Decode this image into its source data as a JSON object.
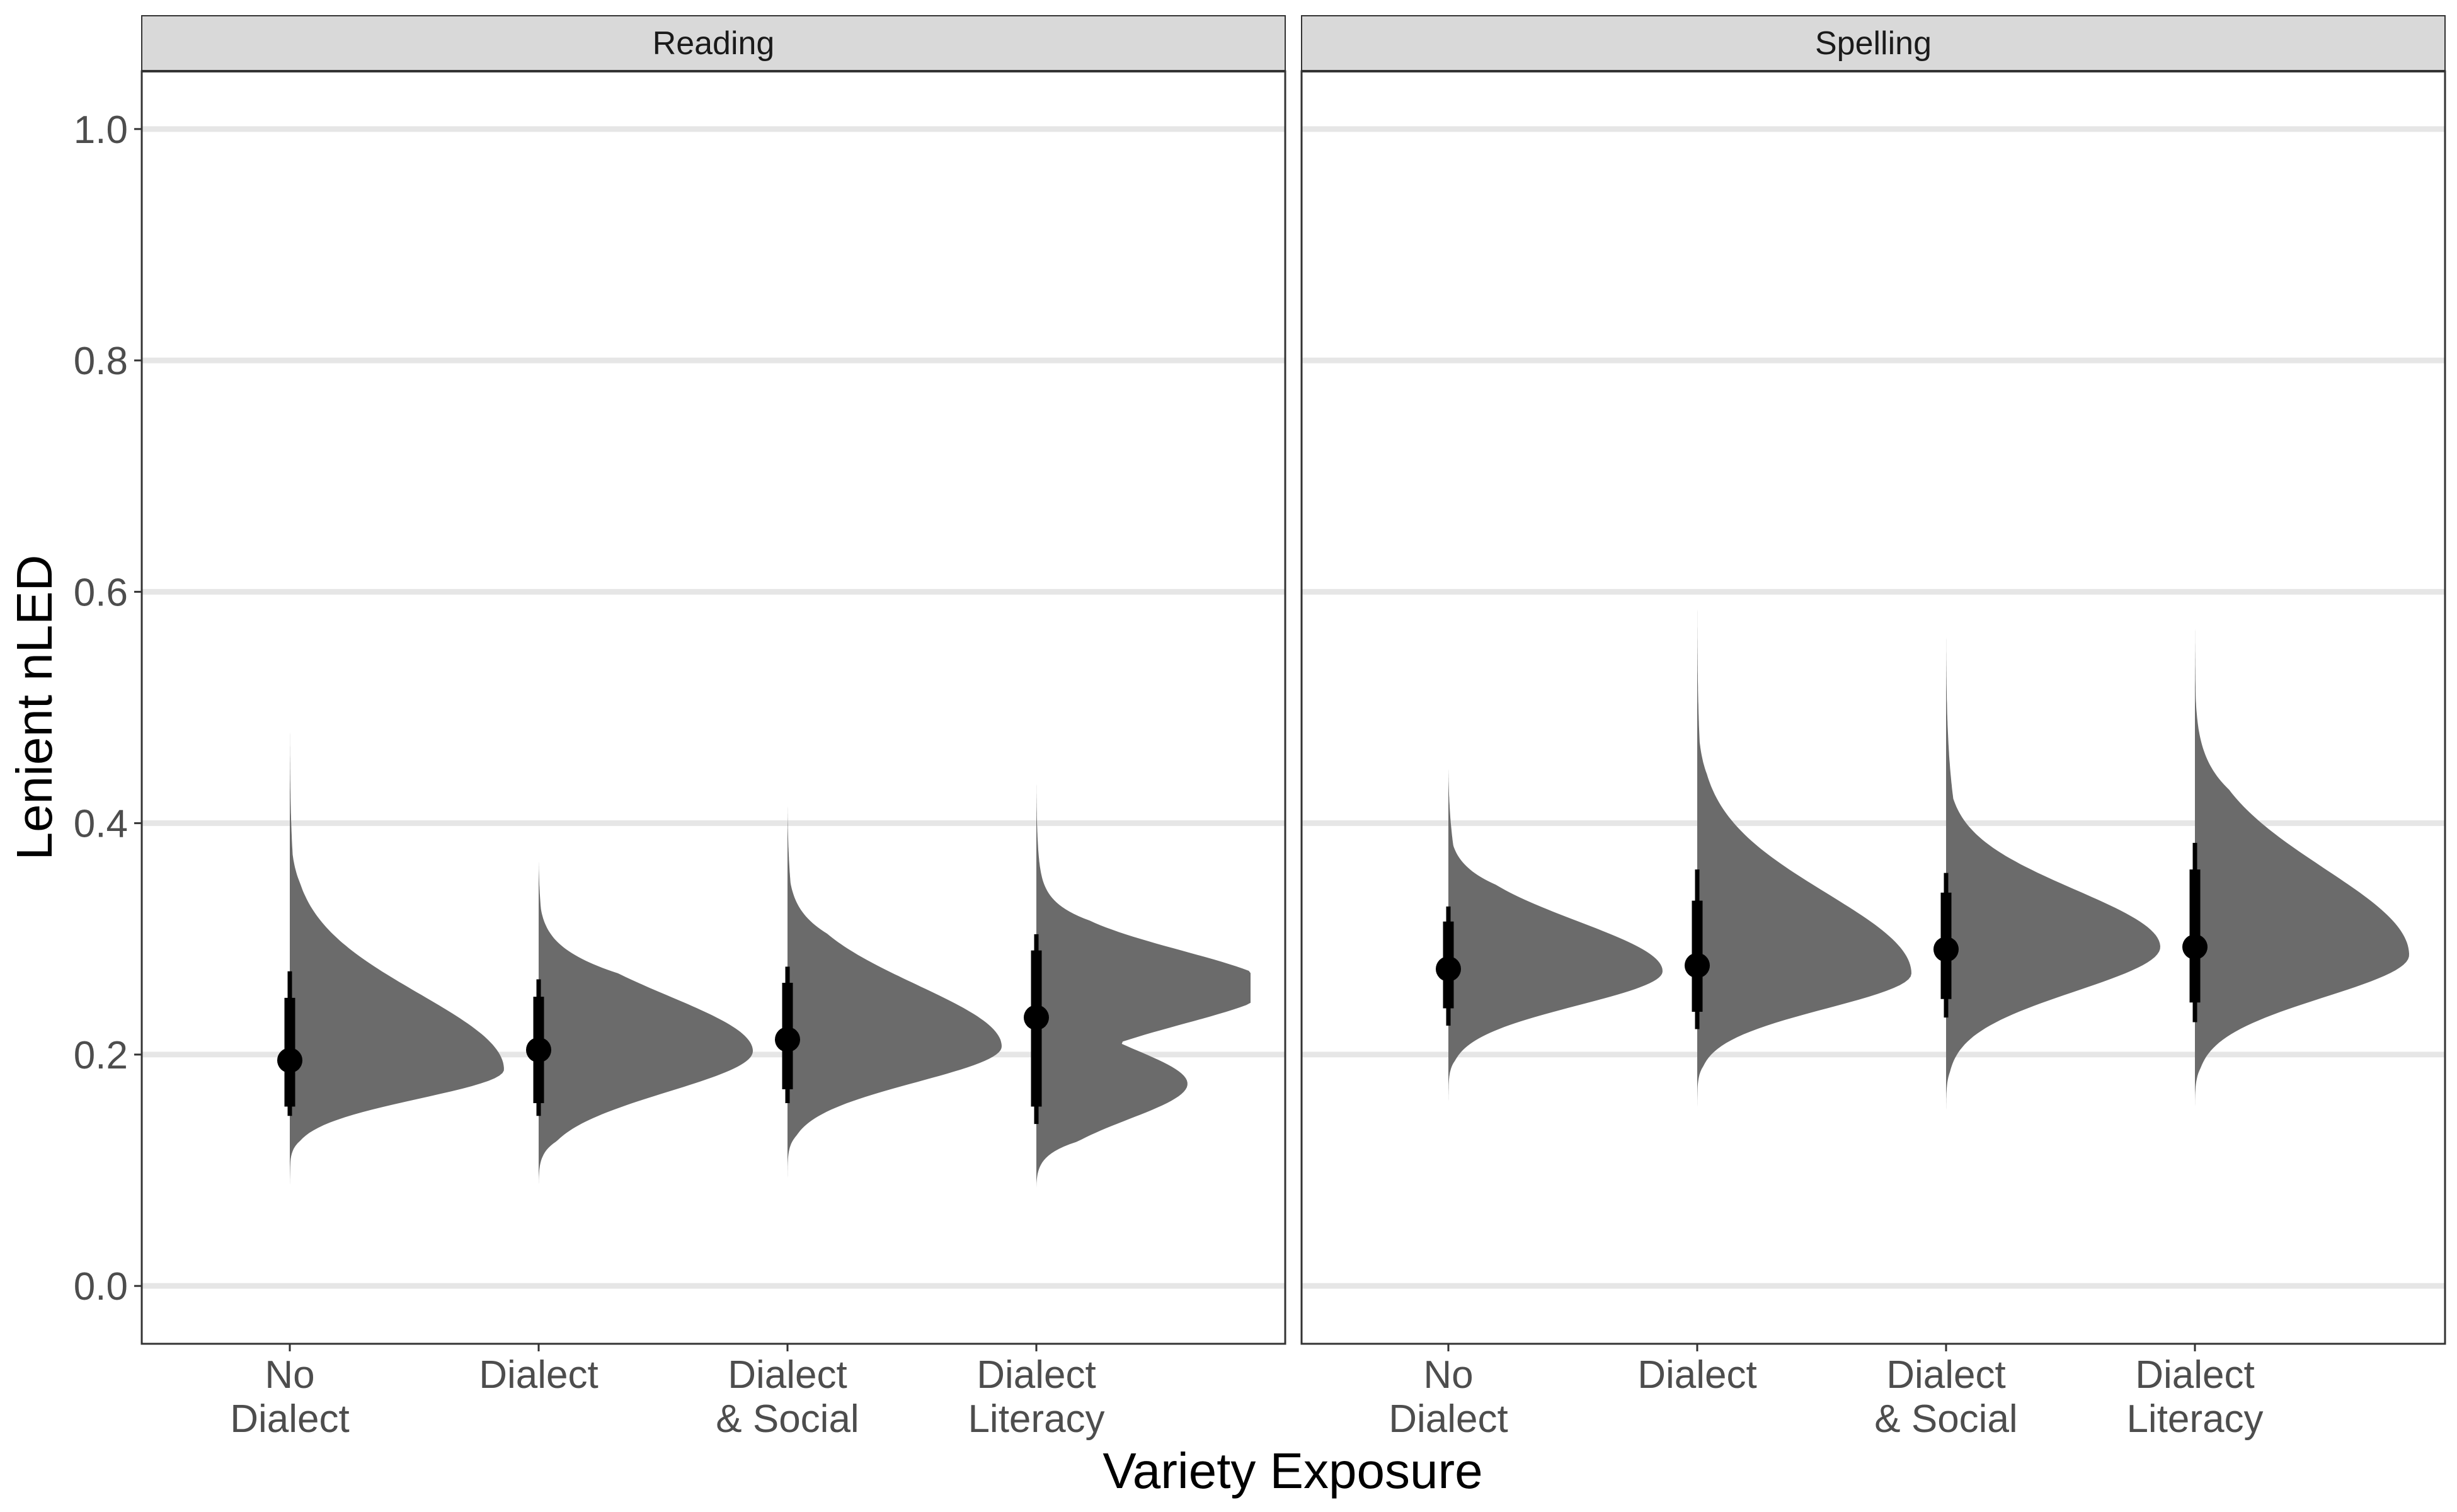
{
  "chart_data": {
    "type": "halfeye",
    "xlabel": "Variety Exposure",
    "ylabel": "Lenient nLED",
    "ylim": [
      -0.05,
      1.05
    ],
    "yticks": [
      0.0,
      0.2,
      0.4,
      0.6,
      0.8,
      1.0
    ],
    "ytick_labels": [
      "0.0",
      "0.2",
      "0.4",
      "0.6",
      "0.8",
      "1.0"
    ],
    "categories": [
      [
        "No",
        "Dialect"
      ],
      [
        "Dialect"
      ],
      [
        "Dialect",
        "& Social"
      ],
      [
        "Dialect",
        "Literacy"
      ]
    ],
    "grid": "horizontal major",
    "colors": {
      "density": "#6b6b6b",
      "point": "#000000",
      "grid": "#e6e6e6",
      "strip": "#d9d9d9",
      "panel_border": "#333333"
    },
    "panels": [
      {
        "strip_label": "Reading",
        "series": [
          {
            "category": "No Dialect",
            "median": 0.195,
            "q66": [
              0.155,
              0.249
            ],
            "q95": [
              0.147,
              0.272
            ],
            "dist_range": [
              0.085,
              0.49
            ],
            "peak": 0.187
          },
          {
            "category": "Dialect",
            "median": 0.204,
            "q66": [
              0.158,
              0.25
            ],
            "q95": [
              0.147,
              0.265
            ],
            "dist_range": [
              0.085,
              0.37
            ],
            "peak": 0.203
          },
          {
            "category": "Dialect & Social",
            "median": 0.213,
            "q66": [
              0.17,
              0.262
            ],
            "q95": [
              0.158,
              0.276
            ],
            "dist_range": [
              0.09,
              0.42
            ],
            "peak": 0.207
          },
          {
            "category": "Dialect Literacy",
            "median": 0.232,
            "q66": [
              0.155,
              0.29
            ],
            "q95": [
              0.14,
              0.304
            ],
            "dist_range": [
              0.085,
              0.44
            ],
            "peak": 0.258,
            "bimodal": true
          }
        ]
      },
      {
        "strip_label": "Spelling",
        "series": [
          {
            "category": "No Dialect",
            "median": 0.274,
            "q66": [
              0.24,
              0.315
            ],
            "q95": [
              0.225,
              0.328
            ],
            "dist_range": [
              0.155,
              0.45
            ],
            "peak": 0.272
          },
          {
            "category": "Dialect",
            "median": 0.277,
            "q66": [
              0.237,
              0.333
            ],
            "q95": [
              0.222,
              0.36
            ],
            "dist_range": [
              0.15,
              0.6
            ],
            "peak": 0.27
          },
          {
            "category": "Dialect & Social",
            "median": 0.291,
            "q66": [
              0.248,
              0.34
            ],
            "q95": [
              0.232,
              0.357
            ],
            "dist_range": [
              0.145,
              0.57
            ],
            "peak": 0.293
          },
          {
            "category": "Dialect Literacy",
            "median": 0.293,
            "q66": [
              0.245,
              0.36
            ],
            "q95": [
              0.228,
              0.383
            ],
            "dist_range": [
              0.148,
              0.58
            ],
            "peak": 0.286
          }
        ]
      }
    ]
  }
}
